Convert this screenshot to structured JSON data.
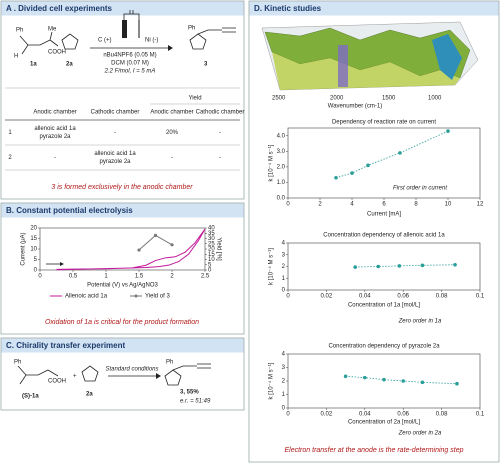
{
  "panels": {
    "a": {
      "title": "A . Divided cell experiments",
      "scheme": {
        "ph1": "Ph",
        "me": "Me",
        "h": "H",
        "cooh": "COOH",
        "sm1": "1a",
        "sm2": "2a",
        "anode": "C (+)",
        "cathode": "Ni (-)",
        "cond1": "nBu4NPF6 (0.05 M)",
        "cond2": "DCM (0.07 M)",
        "cond3": "2.2 F/mol, I = 5 mA",
        "ph2": "Ph",
        "product": "3"
      },
      "table": {
        "header": [
          "Anodic chamber",
          "Cathodic chamber",
          "Yield"
        ],
        "subheader": [
          "Anodic chamber",
          "Cathodic chamber"
        ],
        "rows": [
          [
            "1",
            [
              "allenoic acid 1a",
              "pyrazole 2a"
            ],
            "-",
            "20%",
            "-"
          ],
          [
            "2",
            "-",
            [
              "allenoic acid 1a",
              "pyrazole 2a"
            ],
            "-",
            "-"
          ]
        ]
      },
      "note": "3 is formed exclusively in the anodic chamber"
    },
    "b": {
      "title": "B. Constant potential electrolysis",
      "note": "Oxidation of 1a is critical for the product formation"
    },
    "c": {
      "title": "C. Chirality transfer experiment",
      "scheme": {
        "ph1": "Ph",
        "sm1": "(S)-1a",
        "cooh": "COOH",
        "plus": "+",
        "sm2": "2a",
        "cond": "Standard conditions",
        "ph2": "Ph",
        "product": "3, 55%",
        "er": "e.r. = 51:49"
      }
    },
    "d": {
      "title": "D. Kinetic studies",
      "ir": {
        "ticks": [
          "2500",
          "2000",
          "1500",
          "1000"
        ],
        "xlabel": "Wavenumber (cm-1)"
      },
      "footer": "Electron transfer at the anode is the rate-determining step"
    }
  },
  "chart_data": [
    {
      "type": "line",
      "x_label": "Potential (V) vs Ag/AgNO3",
      "y_label": "Current (μA)",
      "y2_label": "Yield [%]",
      "xlim": [
        0,
        2.5
      ],
      "xticks": [
        0,
        0.5,
        1,
        1.5,
        2,
        2.5
      ],
      "ylim": [
        0,
        20
      ],
      "yticks": [
        0,
        5,
        10,
        15,
        20
      ],
      "y2lim": [
        0,
        40
      ],
      "y2ticks": [
        0,
        5,
        10,
        15,
        20,
        25,
        30,
        35,
        40
      ],
      "legend": "bottom",
      "series": [
        {
          "name": "Allenoic acid 1a",
          "color": "#c2189b",
          "x": [
            0.25,
            0.5,
            1.0,
            1.4,
            1.6,
            1.75,
            1.9,
            2.05,
            2.2,
            2.35,
            2.5,
            2.4,
            2.25,
            2.1,
            1.95,
            1.8,
            1.6,
            1.3,
            0.9,
            0.5,
            0.25
          ],
          "values": [
            0.3,
            0.4,
            0.6,
            1.0,
            2.2,
            4.5,
            5.8,
            6.3,
            8.5,
            13,
            19.5,
            14,
            7.5,
            4,
            2.3,
            1.6,
            1.2,
            0.9,
            0.6,
            0.3,
            0.1
          ]
        },
        {
          "name": "Yield of 3",
          "color": "#777777",
          "axis": "y2",
          "markers": true,
          "x": [
            1.5,
            1.75,
            2
          ],
          "values": [
            19,
            33,
            24
          ]
        }
      ]
    },
    {
      "type": "scatter",
      "title": "Dependency of reaction rate on current",
      "x_label": "Current [mA]",
      "y_label": "k [10⁻⁴ M s⁻¹]",
      "xlim": [
        0,
        12
      ],
      "xticks": [
        0,
        2,
        4,
        6,
        8,
        10,
        12
      ],
      "ylim": [
        0,
        4.5
      ],
      "yticks": [
        {
          "value": 0,
          "label": "0.0"
        },
        {
          "value": 1,
          "label": "1.0"
        },
        {
          "value": 2,
          "label": "2.0"
        },
        {
          "value": 3,
          "label": "3.0"
        },
        {
          "value": 4,
          "label": "4.0"
        }
      ],
      "color": "#2a9f99",
      "x": [
        3,
        4,
        5,
        7,
        10
      ],
      "values": [
        1.3,
        1.6,
        2.1,
        2.9,
        4.3
      ],
      "annotation": "First order in current"
    },
    {
      "type": "scatter",
      "title": "Concentration dependency of allenoic acid 1a",
      "x_label": "Concentration of 1a [mol/L]",
      "y_label": "k [10⁻⁴ M s⁻¹]",
      "xlim": [
        0,
        0.1
      ],
      "xticks": [
        0,
        0.02,
        0.04,
        0.06,
        0.08,
        0.1
      ],
      "ylim": [
        0,
        4
      ],
      "yticks": [
        0,
        1,
        2,
        3,
        4
      ],
      "color": "#2a9f99",
      "x": [
        0.035,
        0.047,
        0.058,
        0.07,
        0.087
      ],
      "values": [
        1.95,
        2.0,
        2.05,
        2.1,
        2.15
      ],
      "annotation": "Zero order in 1a"
    },
    {
      "type": "scatter",
      "title": "Concentration dependency of pyrazole 2a",
      "x_label": "Concentration of 2a [mol/L]",
      "y_label": "k [10⁻⁴ M s⁻¹]",
      "xlim": [
        0,
        0.1
      ],
      "xticks": [
        0,
        0.02,
        0.04,
        0.06,
        0.08,
        0.1
      ],
      "ylim": [
        0,
        4
      ],
      "yticks": [
        0,
        1,
        2,
        3,
        4
      ],
      "color": "#2a9f99",
      "x": [
        0.03,
        0.04,
        0.05,
        0.06,
        0.07,
        0.088
      ],
      "values": [
        2.35,
        2.25,
        2.1,
        2.0,
        1.9,
        1.8
      ],
      "annotation": "Zero order in 2a"
    }
  ]
}
